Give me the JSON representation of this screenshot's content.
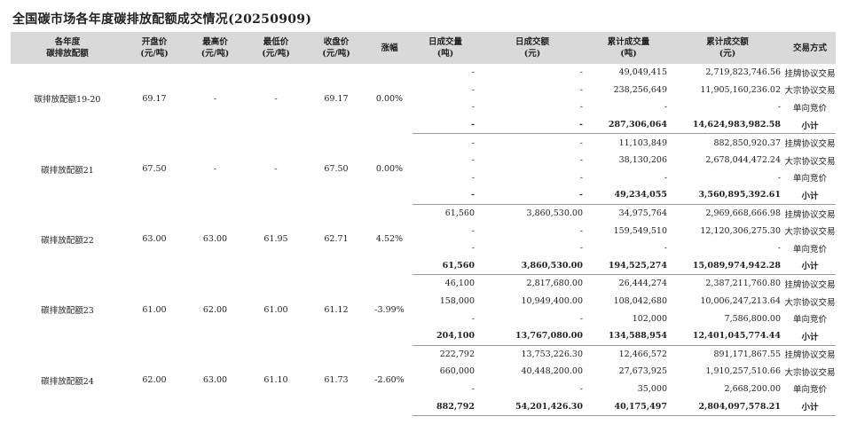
{
  "title": "全国碳市场各年度碳排放配额成交情况(20250909)",
  "columns": [
    {
      "line1": "各年度",
      "line2": "碳排放配额"
    },
    {
      "line1": "开盘价",
      "line2": "(元/吨)"
    },
    {
      "line1": "最高价",
      "line2": "(元/吨)"
    },
    {
      "line1": "最低价",
      "line2": "(元/吨)"
    },
    {
      "line1": "收盘价",
      "line2": "(元/吨)"
    },
    {
      "line1": "涨幅",
      "line2": ""
    },
    {
      "line1": "日成交量",
      "line2": "(吨)"
    },
    {
      "line1": "日成交额",
      "line2": "(元)"
    },
    {
      "line1": "累计成交量",
      "line2": "(吨)"
    },
    {
      "line1": "累计成交额",
      "line2": "(元)"
    },
    {
      "line1": "交易方式",
      "line2": ""
    }
  ],
  "groups": [
    {
      "name": "碳排放配额19-20",
      "open": "69.17",
      "high": "-",
      "low": "-",
      "close": "69.17",
      "change": "0.00%",
      "rows": [
        {
          "vol": "-",
          "amt": "-",
          "cvol": "49,049,415",
          "camt": "2,719,823,746.56",
          "mode": "挂牌协议交易"
        },
        {
          "vol": "-",
          "amt": "-",
          "cvol": "238,256,649",
          "camt": "11,905,160,236.02",
          "mode": "大宗协议交易"
        },
        {
          "vol": "-",
          "amt": "-",
          "cvol": "-",
          "camt": "-",
          "mode": "单向竞价"
        },
        {
          "vol": "-",
          "amt": "-",
          "cvol": "287,306,064",
          "camt": "14,624,983,982.58",
          "mode": "小计"
        }
      ]
    },
    {
      "name": "碳排放配额21",
      "open": "67.50",
      "high": "-",
      "low": "-",
      "close": "67.50",
      "change": "0.00%",
      "rows": [
        {
          "vol": "-",
          "amt": "-",
          "cvol": "11,103,849",
          "camt": "882,850,920.37",
          "mode": "挂牌协议交易"
        },
        {
          "vol": "-",
          "amt": "-",
          "cvol": "38,130,206",
          "camt": "2,678,044,472.24",
          "mode": "大宗协议交易"
        },
        {
          "vol": "-",
          "amt": "-",
          "cvol": "-",
          "camt": "-",
          "mode": "单向竞价"
        },
        {
          "vol": "-",
          "amt": "-",
          "cvol": "49,234,055",
          "camt": "3,560,895,392.61",
          "mode": "小计"
        }
      ]
    },
    {
      "name": "碳排放配额22",
      "open": "63.00",
      "high": "63.00",
      "low": "61.95",
      "close": "62.71",
      "change": "4.52%",
      "rows": [
        {
          "vol": "61,560",
          "amt": "3,860,530.00",
          "cvol": "34,975,764",
          "camt": "2,969,668,666.98",
          "mode": "挂牌协议交易"
        },
        {
          "vol": "-",
          "amt": "-",
          "cvol": "159,549,510",
          "camt": "12,120,306,275.30",
          "mode": "大宗协议交易"
        },
        {
          "vol": "-",
          "amt": "-",
          "cvol": "-",
          "camt": "-",
          "mode": "单向竞价"
        },
        {
          "vol": "61,560",
          "amt": "3,860,530.00",
          "cvol": "194,525,274",
          "camt": "15,089,974,942.28",
          "mode": "小计"
        }
      ]
    },
    {
      "name": "碳排放配额23",
      "open": "61.00",
      "high": "62.00",
      "low": "61.00",
      "close": "61.12",
      "change": "-3.99%",
      "rows": [
        {
          "vol": "46,100",
          "amt": "2,817,680.00",
          "cvol": "26,444,274",
          "camt": "2,387,211,760.80",
          "mode": "挂牌协议交易"
        },
        {
          "vol": "158,000",
          "amt": "10,949,400.00",
          "cvol": "108,042,680",
          "camt": "10,006,247,213.64",
          "mode": "大宗协议交易"
        },
        {
          "vol": "-",
          "amt": "-",
          "cvol": "102,000",
          "camt": "7,586,800.00",
          "mode": "单向竞价"
        },
        {
          "vol": "204,100",
          "amt": "13,767,080.00",
          "cvol": "134,588,954",
          "camt": "12,401,045,774.44",
          "mode": "小计"
        }
      ]
    },
    {
      "name": "碳排放配额24",
      "open": "62.00",
      "high": "63.00",
      "low": "61.10",
      "close": "61.73",
      "change": "-2.60%",
      "rows": [
        {
          "vol": "222,792",
          "amt": "13,753,226.30",
          "cvol": "12,466,572",
          "camt": "891,171,867.55",
          "mode": "挂牌协议交易"
        },
        {
          "vol": "660,000",
          "amt": "40,448,200.00",
          "cvol": "27,673,925",
          "camt": "1,910,257,510.66",
          "mode": "大宗协议交易"
        },
        {
          "vol": "-",
          "amt": "-",
          "cvol": "35,000",
          "camt": "2,668,200.00",
          "mode": "单向竞价"
        },
        {
          "vol": "882,792",
          "amt": "54,201,426.30",
          "cvol": "40,175,497",
          "camt": "2,804,097,578.21",
          "mode": "小计"
        }
      ]
    }
  ]
}
